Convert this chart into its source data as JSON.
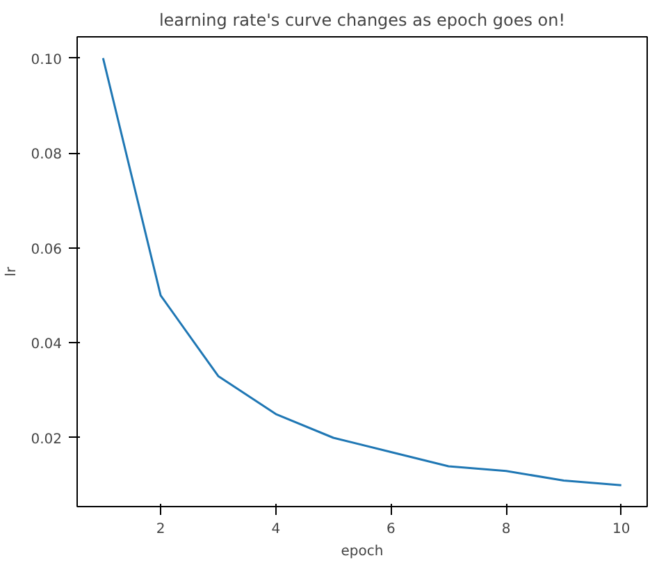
{
  "chart_data": {
    "type": "line",
    "title": "learning rate's curve changes as epoch goes on!",
    "xlabel": "epoch",
    "ylabel": "lr",
    "x": [
      1,
      2,
      3,
      4,
      5,
      6,
      7,
      8,
      9,
      10
    ],
    "series": [
      {
        "color": "#1f77b4",
        "values": [
          0.1,
          0.05,
          0.033,
          0.025,
          0.02,
          0.017,
          0.014,
          0.013,
          0.011,
          0.01
        ]
      }
    ],
    "xlim": [
      0.55,
      10.45
    ],
    "ylim": [
      0.0055,
      0.1045
    ],
    "xticks": [
      2,
      4,
      6,
      8,
      10
    ],
    "yticks": [
      {
        "value": 0.02,
        "label": "0.02"
      },
      {
        "value": 0.04,
        "label": "0.04"
      },
      {
        "value": 0.06,
        "label": "0.06"
      },
      {
        "value": 0.08,
        "label": "0.08"
      },
      {
        "value": 0.1,
        "label": "0.10"
      }
    ],
    "grid": false
  }
}
